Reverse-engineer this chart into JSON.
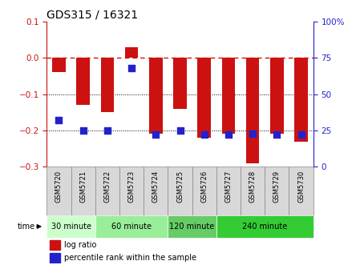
{
  "title": "GDS315 / 16321",
  "samples": [
    "GSM5720",
    "GSM5721",
    "GSM5722",
    "GSM5723",
    "GSM5724",
    "GSM5725",
    "GSM5726",
    "GSM5727",
    "GSM5728",
    "GSM5729",
    "GSM5730"
  ],
  "log_ratio": [
    -0.04,
    -0.13,
    -0.15,
    0.03,
    -0.21,
    -0.14,
    -0.22,
    -0.21,
    -0.29,
    -0.21,
    -0.23
  ],
  "percentile": [
    32,
    25,
    25,
    68,
    22,
    25,
    22,
    22,
    23,
    22,
    22
  ],
  "bar_color": "#cc1111",
  "dot_color": "#2222cc",
  "ylim_left": [
    -0.3,
    0.1
  ],
  "ylim_right": [
    0,
    100
  ],
  "yticks_left": [
    -0.3,
    -0.2,
    -0.1,
    0.0,
    0.1
  ],
  "yticks_right": [
    0,
    25,
    50,
    75,
    100
  ],
  "ytick_right_labels": [
    "0",
    "25",
    "50",
    "75",
    "100%"
  ],
  "hline_zero_color": "#cc1111",
  "hline_grid_color": "black",
  "hline_grid_values": [
    -0.1,
    -0.2
  ],
  "groups": [
    {
      "label": "30 minute",
      "start": 0,
      "end": 1,
      "color": "#ccffcc"
    },
    {
      "label": "60 minute",
      "start": 2,
      "end": 4,
      "color": "#99ee99"
    },
    {
      "label": "120 minute",
      "start": 5,
      "end": 6,
      "color": "#66cc66"
    },
    {
      "label": "240 minute",
      "start": 7,
      "end": 10,
      "color": "#33cc33"
    }
  ],
  "time_label": "time",
  "legend_log_ratio": "log ratio",
  "legend_percentile": "percentile rank within the sample",
  "bar_width": 0.55,
  "dot_size": 28,
  "title_fontsize": 10,
  "tick_fontsize": 7.5,
  "background_color": "#ffffff",
  "plot_bg_color": "#ffffff"
}
